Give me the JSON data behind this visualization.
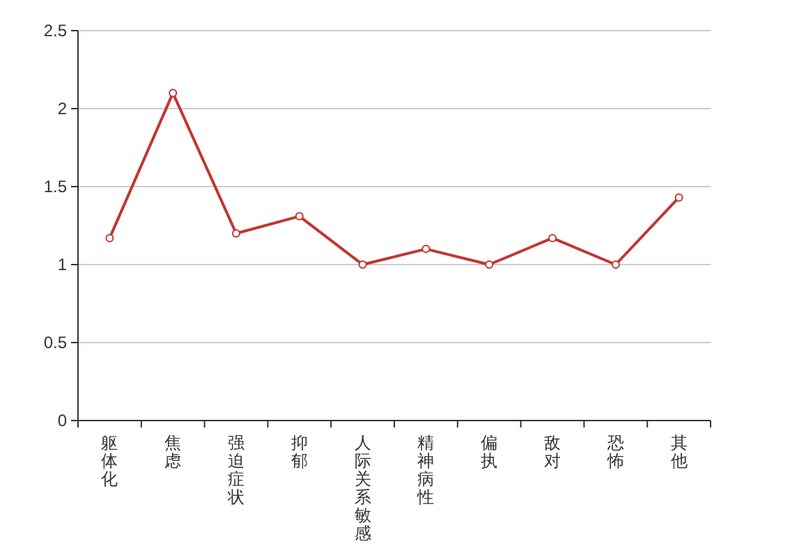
{
  "chart_data": {
    "type": "line",
    "categories": [
      "躯体化",
      "焦虑",
      "强迫症状",
      "抑郁",
      "人际关系敏感",
      "精神病性",
      "偏执",
      "敌对",
      "恐怖",
      "其他"
    ],
    "series": [
      {
        "color": "#c23531",
        "values": [
          1.17,
          2.1,
          1.2,
          1.31,
          1.0,
          1.1,
          1.0,
          1.17,
          1.0,
          1.43
        ]
      }
    ],
    "ylim": [
      0,
      2.5
    ],
    "yticks": [
      0,
      0.5,
      1,
      1.5,
      2,
      2.5
    ],
    "grid": "y",
    "marker": "circle",
    "line_style": "solid"
  }
}
